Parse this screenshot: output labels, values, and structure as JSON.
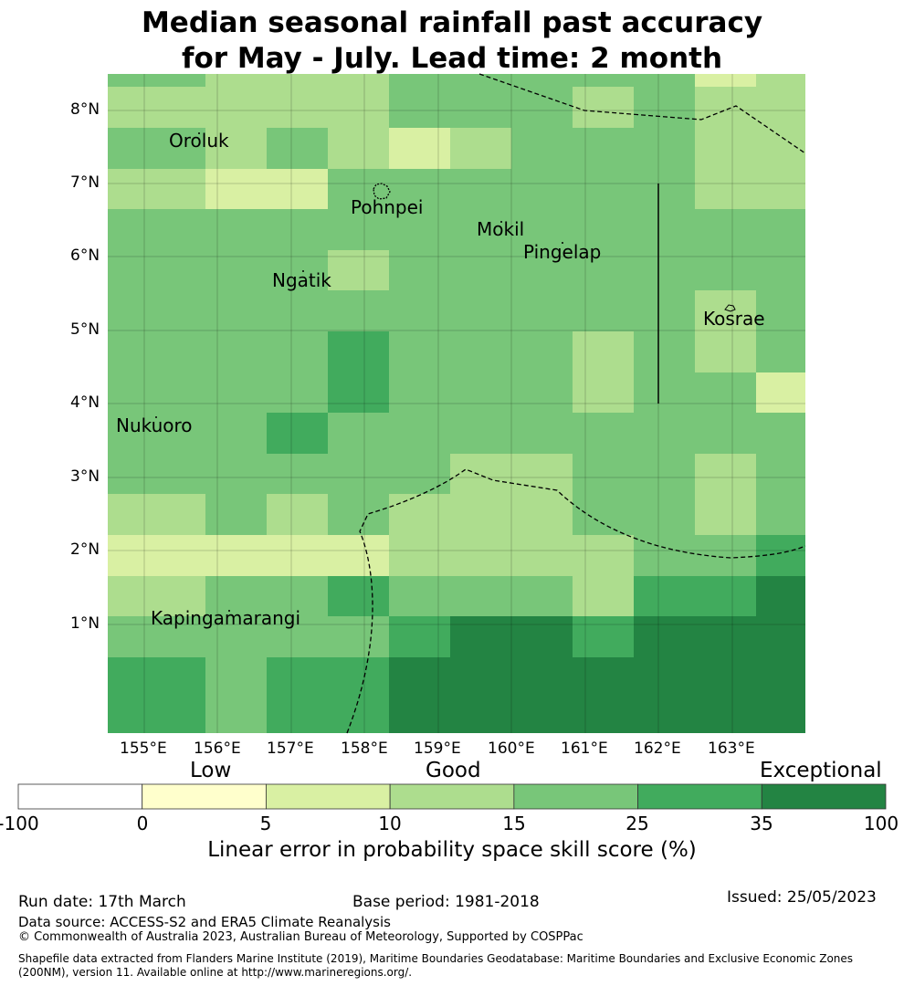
{
  "title": {
    "line1": "Median seasonal rainfall past accuracy",
    "line2": "for May - July. Lead time: 2 month"
  },
  "map": {
    "lon_labels": [
      "155°E",
      "156°E",
      "157°E",
      "158°E",
      "159°E",
      "160°E",
      "161°E",
      "162°E",
      "163°E"
    ],
    "lat_labels": [
      "8°N",
      "7°N",
      "6°N",
      "5°N",
      "4°N",
      "3°N",
      "2°N",
      "1°N"
    ],
    "place_names": [
      "Oroluk",
      "Pohnpei",
      "Mokil",
      "Pingelap",
      "Ngatik",
      "Kosrae",
      "Nukuoro",
      "Kapingamarangi"
    ],
    "skill_class_grid": [
      [
        4,
        3,
        3,
        3,
        4,
        4,
        4,
        4,
        4,
        2,
        3
      ],
      [
        3,
        3,
        3,
        3,
        4,
        4,
        4,
        3,
        4,
        3,
        3
      ],
      [
        4,
        3,
        4,
        3,
        2,
        3,
        4,
        4,
        4,
        3,
        3
      ],
      [
        3,
        2,
        2,
        4,
        4,
        4,
        4,
        4,
        4,
        3,
        3
      ],
      [
        4,
        4,
        4,
        4,
        4,
        4,
        4,
        4,
        4,
        4,
        4
      ],
      [
        4,
        4,
        4,
        3,
        4,
        4,
        4,
        4,
        4,
        4,
        4
      ],
      [
        4,
        4,
        4,
        4,
        4,
        4,
        4,
        4,
        4,
        3,
        4
      ],
      [
        4,
        4,
        4,
        5,
        4,
        4,
        4,
        3,
        4,
        3,
        4
      ],
      [
        4,
        4,
        4,
        5,
        4,
        4,
        4,
        3,
        4,
        4,
        2
      ],
      [
        4,
        4,
        5,
        4,
        4,
        4,
        4,
        4,
        4,
        4,
        4
      ],
      [
        4,
        4,
        4,
        4,
        4,
        3,
        3,
        4,
        4,
        3,
        4
      ],
      [
        3,
        4,
        3,
        4,
        3,
        3,
        3,
        4,
        4,
        3,
        4
      ],
      [
        2,
        2,
        2,
        2,
        3,
        3,
        3,
        3,
        4,
        4,
        5
      ],
      [
        3,
        4,
        4,
        5,
        4,
        4,
        4,
        3,
        5,
        5,
        6
      ],
      [
        4,
        4,
        4,
        4,
        5,
        6,
        6,
        5,
        6,
        6,
        6
      ],
      [
        5,
        4,
        5,
        5,
        6,
        6,
        6,
        6,
        6,
        6,
        6
      ],
      [
        5,
        4,
        6,
        6,
        6,
        6,
        6,
        6,
        6,
        6,
        6
      ],
      [
        6,
        6,
        6,
        6,
        6,
        6,
        6,
        6,
        6,
        6,
        6
      ]
    ]
  },
  "colorbar": {
    "categories": [
      "Low",
      "Good",
      "Exceptional"
    ],
    "ticks": [
      "-100",
      "0",
      "5",
      "10",
      "15",
      "25",
      "35",
      "100"
    ],
    "colors": [
      "#ffffff",
      "#ffffcc",
      "#d9f0a3",
      "#addd8e",
      "#78c679",
      "#41ab5d",
      "#238443"
    ],
    "label": "Linear error in probability space skill score (%)"
  },
  "footer": {
    "run_date": "Run date: 17th March",
    "base_period": "Base period: 1981-2018",
    "issued": "Issued: 25/05/2023",
    "data_source": "Data source: ACCESS-S2 and ERA5 Climate Reanalysis",
    "copyright": "© Commonwealth of Australia 2023, Australian Bureau of Meteorology, Supported by COSPPac",
    "shapefile_line1": "Shapefile data extracted from Flanders Marine Institute (2019), Maritime Boundaries Geodatabase: Maritime Boundaries and Exclusive Economic Zones",
    "shapefile_line2": "(200NM), version 11. Available online at http://www.marineregions.org/."
  }
}
